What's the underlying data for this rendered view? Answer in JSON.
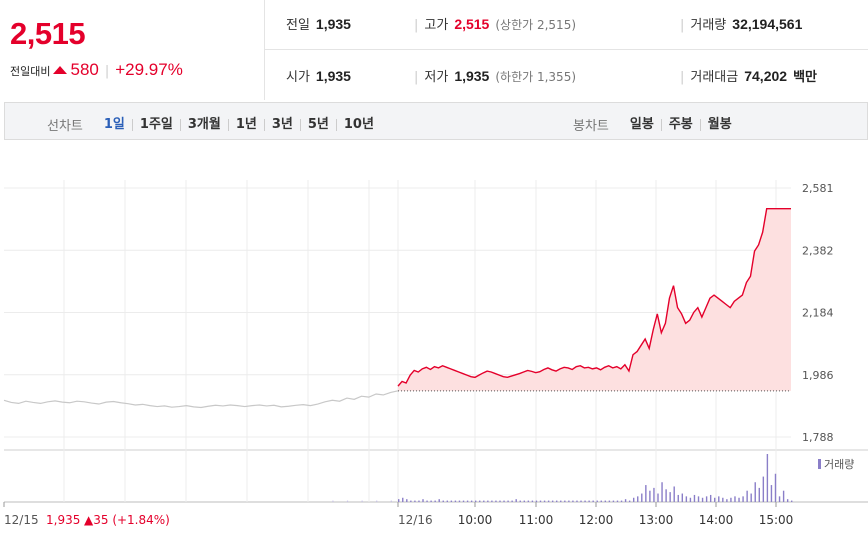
{
  "quote": {
    "price": "2,515",
    "change_label": "전일대비",
    "change_icon": "up-arrow-icon",
    "change_amount": "580",
    "change_rate": "+29.97%",
    "prev_close_label": "전일",
    "prev_close": "1,935",
    "open_label": "시가",
    "open": "1,935",
    "high_label": "고가",
    "high": "2,515",
    "upper_limit": "(상한가 2,515)",
    "low_label": "저가",
    "low": "1,935",
    "lower_limit": "(하한가 1,355)",
    "volume_label": "거래량",
    "volume": "32,194,561",
    "amount_label": "거래대금",
    "amount": "74,202",
    "amount_unit": "백만"
  },
  "line_tabs": {
    "label": "선차트",
    "items": [
      "1일",
      "1주일",
      "3개월",
      "1년",
      "3년",
      "5년",
      "10년"
    ],
    "active": 0
  },
  "candle_tabs": {
    "label": "봉차트",
    "items": [
      "일봉",
      "주봉",
      "월봉"
    ]
  },
  "colors": {
    "up": "#e4002b",
    "active_tab": "#2b5fb8",
    "volume": "#8a7ec8",
    "prev_line": "#c8c8c8",
    "fill": "#fde0e0"
  },
  "chart_data": {
    "type": "line",
    "ylim": [
      1788,
      2581
    ],
    "yticks": [
      "2,581",
      "2,382",
      "2,184",
      "1,986",
      "1,788"
    ],
    "prev_close_value": 1935,
    "prev_day": {
      "label": "12/15",
      "close": "1,935",
      "change": "▲35 (+1.84%)",
      "values": [
        1905,
        1898,
        1895,
        1902,
        1898,
        1895,
        1900,
        1903,
        1899,
        1897,
        1902,
        1900,
        1896,
        1893,
        1899,
        1901,
        1897,
        1894,
        1890,
        1892,
        1888,
        1885,
        1887,
        1883,
        1885,
        1888,
        1884,
        1882,
        1886,
        1889,
        1887,
        1890,
        1888,
        1885,
        1888,
        1890,
        1887,
        1889,
        1884,
        1886,
        1889,
        1891,
        1888,
        1893,
        1900,
        1905,
        1902,
        1912,
        1908,
        1918,
        1915,
        1925,
        1922,
        1930,
        1935
      ]
    },
    "today": {
      "label": "12/16",
      "x_ticks": [
        "10:00",
        "11:00",
        "12:00",
        "13:00",
        "14:00",
        "15:00"
      ],
      "values": [
        1950,
        1965,
        1960,
        1985,
        2000,
        1995,
        2005,
        2010,
        2003,
        2012,
        2008,
        2015,
        2010,
        2005,
        2000,
        1995,
        1990,
        1985,
        1980,
        1978,
        1985,
        1992,
        1998,
        1995,
        1990,
        1985,
        1980,
        1978,
        1982,
        1986,
        1990,
        1995,
        2000,
        1997,
        1993,
        1996,
        2003,
        2008,
        2002,
        1998,
        2005,
        2010,
        2008,
        2003,
        2012,
        2015,
        2008,
        2010,
        2005,
        2008,
        2002,
        2010,
        2015,
        2008,
        2012,
        2005,
        2018,
        1998,
        2050,
        2060,
        2080,
        2100,
        2070,
        2130,
        2180,
        2120,
        2150,
        2230,
        2270,
        2200,
        2180,
        2150,
        2160,
        2185,
        2200,
        2170,
        2200,
        2230,
        2240,
        2230,
        2220,
        2210,
        2200,
        2220,
        2230,
        2240,
        2280,
        2300,
        2380,
        2400,
        2440,
        2515,
        2515,
        2515,
        2515,
        2515,
        2515,
        2515
      ]
    },
    "volume": {
      "legend": "거래량",
      "prev_values": [
        0,
        0,
        0,
        0,
        0,
        0,
        0,
        0,
        0,
        0,
        0,
        0,
        0,
        0,
        0,
        0,
        0,
        0,
        0,
        0,
        0,
        0,
        0,
        0,
        0,
        0,
        0,
        0,
        0,
        0,
        0,
        0,
        0,
        0,
        0,
        0,
        0,
        0,
        0,
        0,
        0,
        0,
        0,
        0,
        0,
        1,
        0,
        1,
        0,
        1,
        0,
        1,
        0,
        1,
        2
      ],
      "today_values": [
        2,
        3,
        2,
        1,
        1,
        1,
        2,
        1,
        1,
        1,
        2,
        1,
        1,
        1,
        1,
        1,
        1,
        1,
        1,
        1,
        1,
        1,
        1,
        1,
        1,
        1,
        1,
        1,
        1,
        2,
        1,
        1,
        1,
        1,
        1,
        1,
        1,
        1,
        1,
        1,
        1,
        1,
        1,
        1,
        1,
        1,
        1,
        1,
        1,
        1,
        1,
        1,
        1,
        1,
        1,
        1,
        2,
        1,
        3,
        4,
        6,
        12,
        8,
        10,
        6,
        14,
        9,
        7,
        11,
        5,
        6,
        4,
        3,
        5,
        4,
        3,
        4,
        5,
        3,
        4,
        3,
        2,
        3,
        4,
        3,
        4,
        8,
        6,
        14,
        10,
        18,
        34,
        12,
        20,
        4,
        8,
        2,
        1
      ]
    }
  }
}
